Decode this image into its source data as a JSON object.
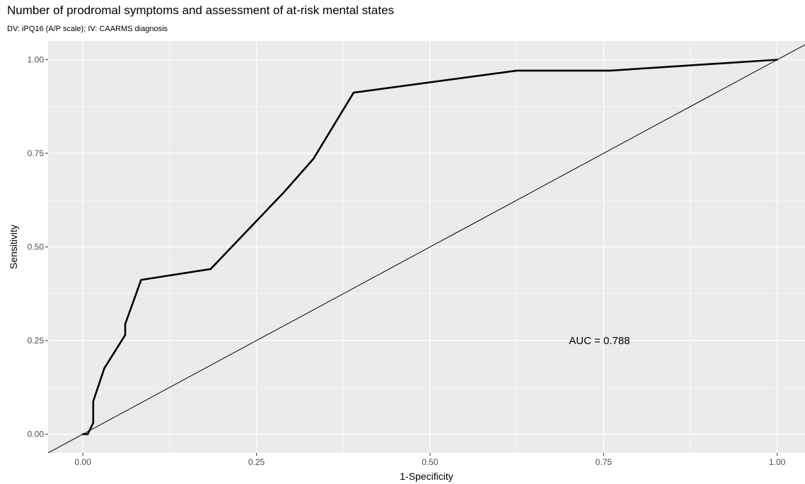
{
  "chart_data": {
    "type": "line",
    "title": "Number of prodromal symptoms and assessment of at-risk mental states",
    "subtitle": "DV: iPQ16 (A/P scale); IV: CAARMS diagnosis",
    "xlabel": "1-Specificity",
    "ylabel": "Sensitivity",
    "xlim": [
      -0.05,
      1.04
    ],
    "ylim": [
      -0.05,
      1.05
    ],
    "x_ticks": [
      "0.00",
      "0.25",
      "0.50",
      "0.75",
      "1.00"
    ],
    "y_ticks": [
      "0.00",
      "0.25",
      "0.50",
      "0.75",
      "1.00"
    ],
    "grid": true,
    "background": "#ebebeb",
    "series": [
      {
        "color": "#000000",
        "x": [
          0.0,
          0.007,
          0.015,
          0.015,
          0.031,
          0.061,
          0.061,
          0.084,
          0.184,
          0.29,
          0.332,
          0.39,
          0.625,
          0.76,
          1.0
        ],
        "y": [
          0.0,
          0.0,
          0.03,
          0.088,
          0.176,
          0.265,
          0.294,
          0.412,
          0.441,
          0.647,
          0.735,
          0.912,
          0.971,
          0.971,
          1.0
        ]
      }
    ],
    "reference_line": {
      "slope": 1,
      "intercept": 0,
      "color": "#000000"
    },
    "annotations": [
      {
        "text": "AUC = 0.788",
        "x": 0.7,
        "y": 0.25
      }
    ]
  }
}
